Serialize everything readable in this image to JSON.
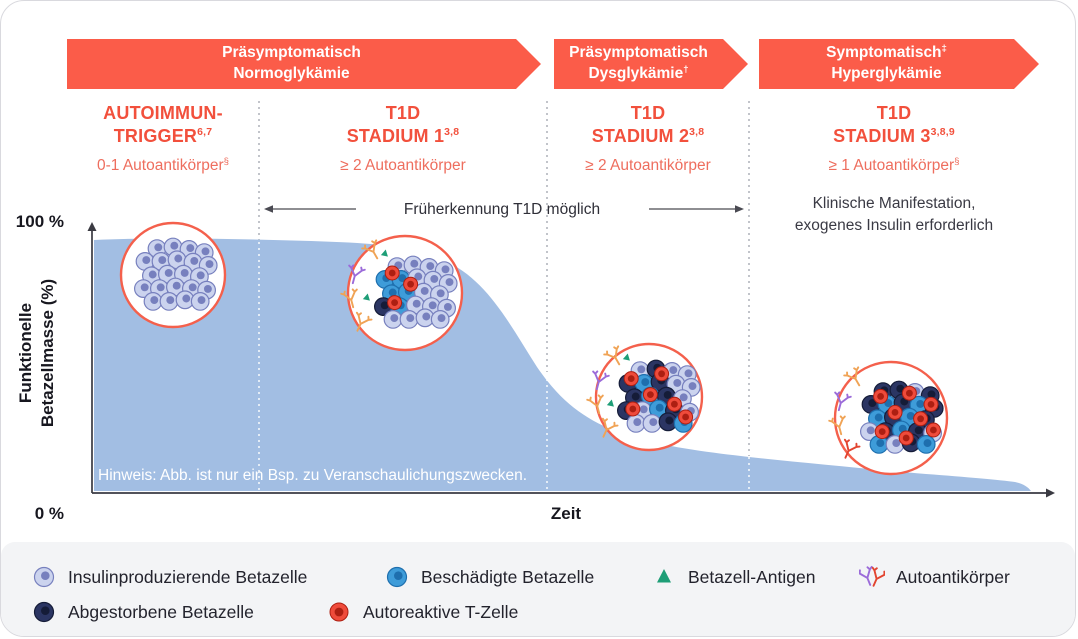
{
  "banners": [
    {
      "line1": "Präsymptomatisch",
      "line1_sup": "",
      "line2": "Normoglykämie",
      "line2_sup": ""
    },
    {
      "line1": "Präsymptomatisch",
      "line1_sup": "",
      "line2": "Dysglykämie",
      "line2_sup": "†"
    },
    {
      "line1": "Symptomatisch",
      "line1_sup": "‡",
      "line2": "Hyperglykämie",
      "line2_sup": ""
    }
  ],
  "stages": [
    {
      "title_line1": "AUTOIMMUN-",
      "title_line2": "TRIGGER",
      "title_sup": "6,7",
      "subtitle": "0-1 Autoantikörper",
      "subtitle_sup": "§"
    },
    {
      "title_line1": "T1D",
      "title_line2": "STADIUM 1",
      "title_sup": "3,8",
      "subtitle": "≥ 2 Autoantikörper",
      "subtitle_sup": ""
    },
    {
      "title_line1": "T1D",
      "title_line2": "STADIUM 2",
      "title_sup": "3,8",
      "subtitle": "≥ 2 Autoantikörper",
      "subtitle_sup": ""
    },
    {
      "title_line1": "T1D",
      "title_line2": "STADIUM 3",
      "title_sup": "3,8,9",
      "subtitle": "≥ 1 Autoantikörper",
      "subtitle_sup": "§"
    }
  ],
  "axis": {
    "y_max": "100 %",
    "y_min": "0 %",
    "y_label_line1": "Funktionelle",
    "y_label_line2": "Betazellmasse (%)",
    "x_label": "Zeit"
  },
  "annotations": {
    "early_detection": "Früherkennung T1D möglich",
    "clinical_line1": "Klinische Manifestation,",
    "clinical_line2": "exogenes Insulin erforderlich",
    "hint": "Hinweis: Abb. ist nur ein Bsp. zu Veranschaulichungszwecken."
  },
  "legend": {
    "items": [
      {
        "icon": "beta-cell",
        "label": "Insulinproduzierende Betazelle"
      },
      {
        "icon": "damaged-cell",
        "label": "Beschädigte Betazelle"
      },
      {
        "icon": "antigen",
        "label": "Betazell-Antigen"
      },
      {
        "icon": "antibody",
        "label": "Autoantikörper"
      },
      {
        "icon": "dead-cell",
        "label": "Abgestorbene Betazelle"
      },
      {
        "icon": "t-cell",
        "label": "Autoreaktive T-Zelle"
      }
    ]
  },
  "circles": [
    {
      "cells": "LLLLLLLLLLLLLLLLLLLLLL",
      "tcells": [],
      "antibodies": [],
      "antigens": []
    },
    {
      "cells": "LLLLBBLLLBBLLNBLLLLLLL",
      "tcells": [
        [
          -26,
          -25
        ],
        [
          -3,
          -11
        ],
        [
          -23,
          12
        ]
      ],
      "antibodies": [
        [
          -32,
          -42,
          "orange"
        ],
        [
          -50,
          -18,
          "purple"
        ],
        [
          -54,
          6,
          "orange"
        ],
        [
          -44,
          30,
          "orange"
        ]
      ],
      "antigens": [
        [
          -20,
          -40
        ],
        [
          -38,
          4
        ]
      ]
    },
    {
      "cells": "LNLLNBNLLNBNLNLBNLLLNB",
      "tcells": [
        [
          -31,
          -23
        ],
        [
          7,
          -29
        ],
        [
          -7,
          -3
        ],
        [
          -29,
          15
        ],
        [
          23,
          9
        ],
        [
          37,
          25
        ]
      ],
      "antibodies": [
        [
          -34,
          -40,
          "orange"
        ],
        [
          -50,
          -16,
          "purple"
        ],
        [
          -52,
          8,
          "orange"
        ],
        [
          -42,
          32,
          "orange"
        ]
      ],
      "antigens": [
        [
          -22,
          -40
        ],
        [
          -38,
          6
        ]
      ]
    },
    {
      "cells": "NNLNNBNBNBNBNLNBNLBLNB",
      "tcells": [
        [
          -23,
          -27
        ],
        [
          13,
          -31
        ],
        [
          40,
          -17
        ],
        [
          -5,
          -7
        ],
        [
          27,
          1
        ],
        [
          -21,
          17
        ],
        [
          9,
          25
        ],
        [
          43,
          15
        ]
      ],
      "antibodies": [
        [
          -36,
          -40,
          "orange"
        ],
        [
          -50,
          -16,
          "purple"
        ],
        [
          -52,
          8,
          "orange"
        ],
        [
          -42,
          32,
          "red"
        ]
      ],
      "antigens": []
    }
  ],
  "colors": {
    "accent": "#FB5C49",
    "stage_title": "#F2503C",
    "stage_subtitle": "#EE6E5E",
    "area_fill": "#A2BEE3",
    "legend_background": "#F3F4F6",
    "text_dark": "#23232D",
    "beta_cell": "#CBD3EE",
    "beta_cell_nucleus": "#7780BE",
    "damaged_cell": "#3E9CD9",
    "damaged_cell_nucleus": "#1E6FAE",
    "dead_cell": "#2B3563",
    "dead_cell_nucleus": "#151C38",
    "t_cell": "#EF4B3B",
    "t_cell_nucleus": "#AD1F12",
    "antigen": "#1E9E77",
    "antibody_orange": "#F0A355",
    "antibody_purple": "#9B6BD9",
    "antibody_red": "#E2442F"
  },
  "chart_data": {
    "type": "area",
    "title": "",
    "xlabel": "Zeit",
    "ylabel": "Funktionelle Betazellmasse (%)",
    "ylim": [
      0,
      100
    ],
    "x_stages": [
      "Autoimmun-Trigger",
      "T1D Stadium 1",
      "T1D Stadium 2",
      "T1D Stadium 3"
    ],
    "beta_cell_mass_pct": [
      93,
      90,
      35,
      12
    ]
  }
}
